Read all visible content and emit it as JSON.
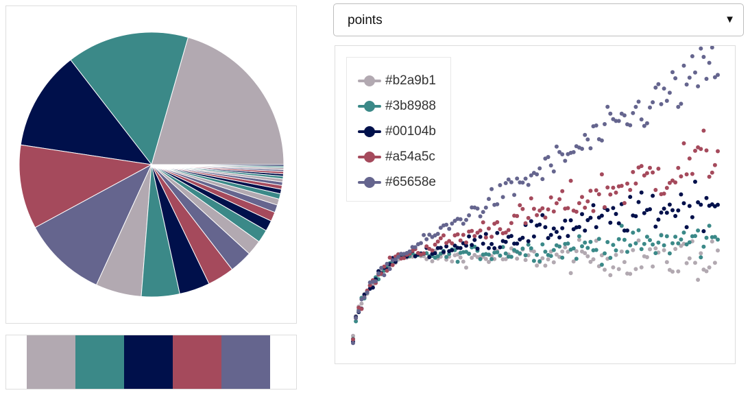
{
  "selector": {
    "value": "points",
    "arrow": "▼"
  },
  "palette": {
    "colors": [
      "#b2a9b1",
      "#3b8988",
      "#00104b",
      "#a54a5c",
      "#65658e"
    ]
  },
  "chart_data": [
    {
      "type": "pie",
      "title": "",
      "colors_cycle": [
        "#b2a9b1",
        "#3b8988",
        "#00104b",
        "#a54a5c",
        "#65658e"
      ],
      "values": [
        22,
        16,
        13,
        11,
        11,
        6,
        5,
        4,
        3.5,
        3,
        2,
        1.7,
        1.4,
        1.2,
        1.0,
        0.8,
        0.7,
        0.6,
        0.5,
        0.45,
        0.4,
        0.35,
        0.3,
        0.3,
        0.25,
        0.25,
        0.2,
        0.2
      ]
    },
    {
      "type": "scatter",
      "title": "",
      "xlabel": "",
      "ylabel": "",
      "xlim": [
        0,
        1
      ],
      "ylim": [
        -0.15,
        1.0
      ],
      "legend": "top-left",
      "series": [
        {
          "name": "#b2a9b1",
          "color": "#b2a9b1",
          "start": 0.22,
          "end": 0.22,
          "spread": 0.07
        },
        {
          "name": "#3b8988",
          "color": "#3b8988",
          "start": 0.22,
          "end": 0.29,
          "spread": 0.06
        },
        {
          "name": "#00104b",
          "color": "#00104b",
          "start": 0.22,
          "end": 0.45,
          "spread": 0.07
        },
        {
          "name": "#a54a5c",
          "color": "#a54a5c",
          "start": 0.22,
          "end": 0.62,
          "spread": 0.09
        },
        {
          "name": "#65658e",
          "color": "#65658e",
          "start": 0.22,
          "end": 0.98,
          "spread": 0.08
        }
      ]
    }
  ]
}
